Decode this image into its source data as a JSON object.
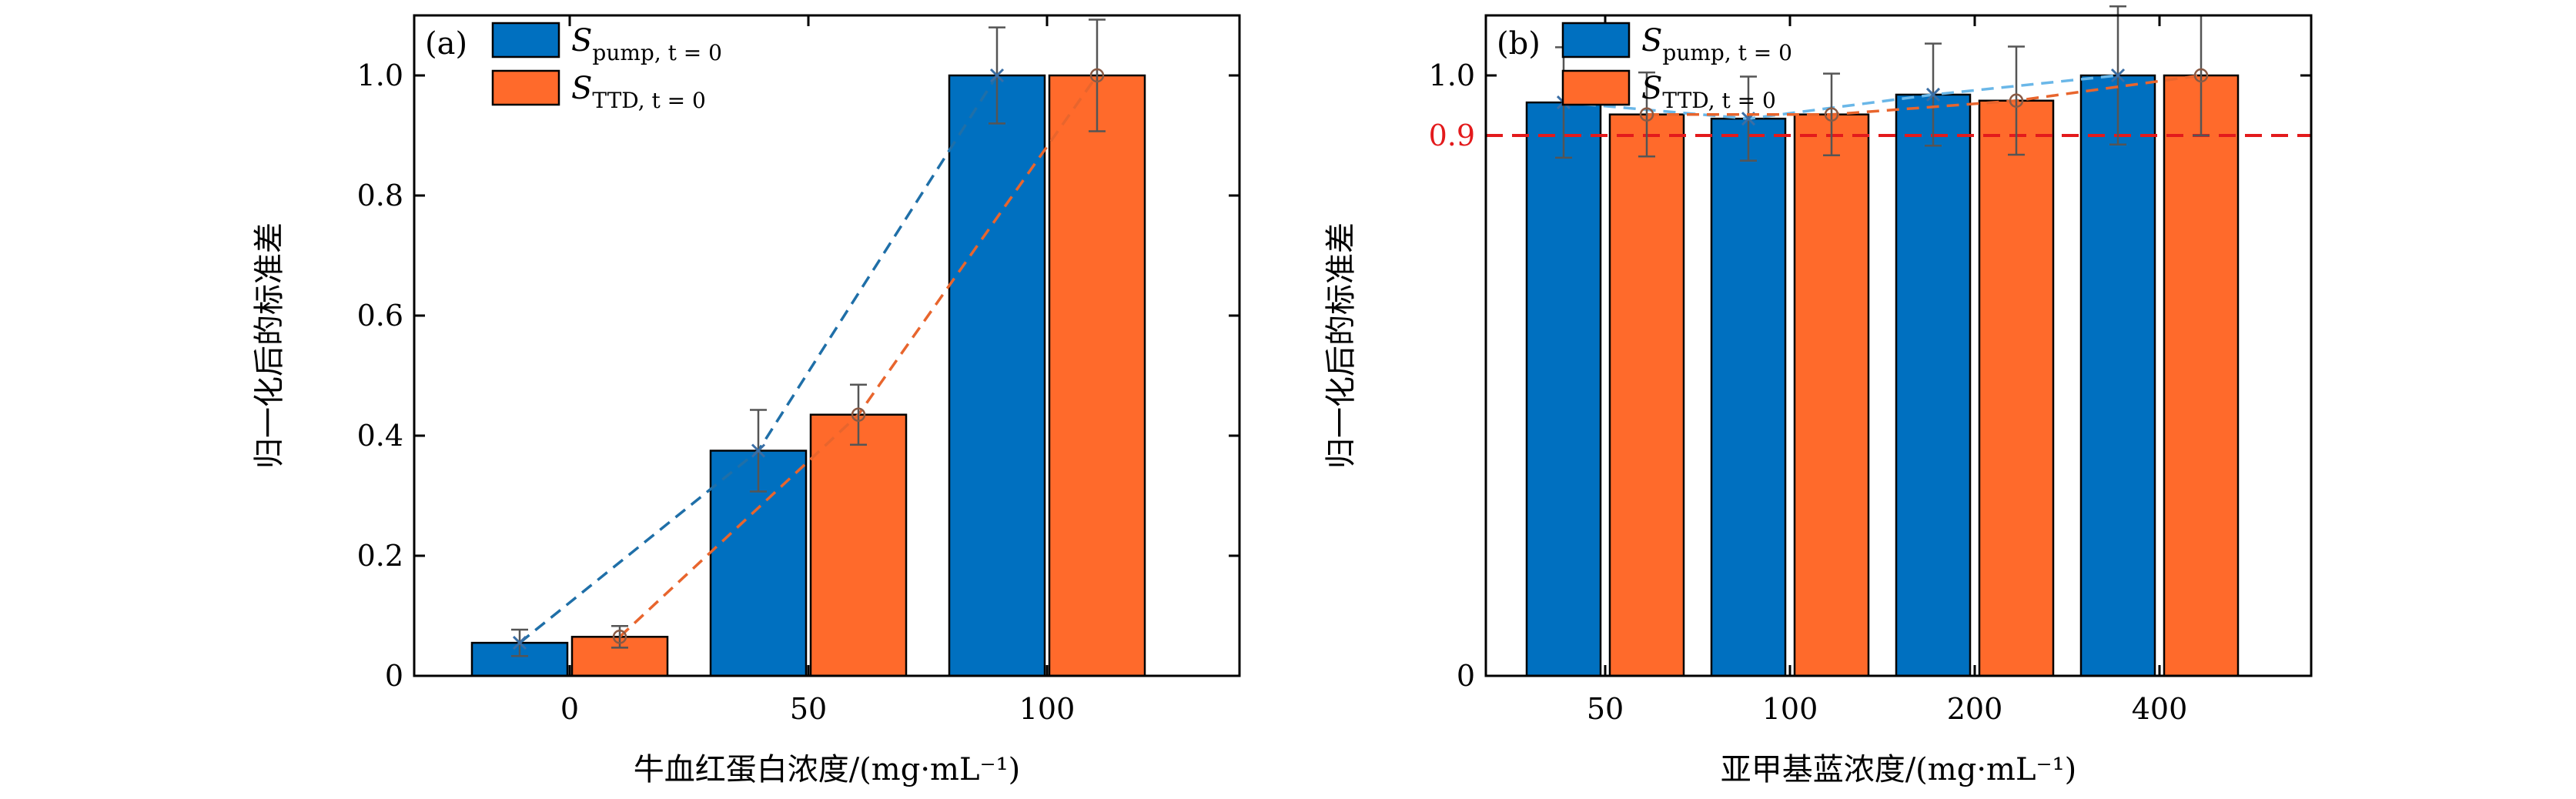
{
  "chart_data": [
    {
      "type": "bar",
      "panel": "(a)",
      "xlabel": "牛血红蛋白浓度/(mg·mL⁻¹)",
      "ylabel": "归一化后的标准差",
      "categories": [
        "0",
        "50",
        "100"
      ],
      "ylim": [
        0,
        1.1
      ],
      "yticks": [
        "0",
        "0.2",
        "0.4",
        "0.6",
        "0.8",
        "1.0"
      ],
      "legend_position": "top-left",
      "series": [
        {
          "name": "S_pump, t=0",
          "legend_main": "S",
          "legend_sub": "pump, t = 0",
          "color": "#0070c0",
          "values": [
            0.055,
            0.375,
            1.0
          ],
          "err": [
            0.022,
            0.068,
            0.08
          ],
          "marker": "x",
          "line_color": "#1f6fa8"
        },
        {
          "name": "S_TTD, t=0",
          "legend_main": "S",
          "legend_sub": "TTD, t = 0",
          "color": "#ff6a2b",
          "values": [
            0.065,
            0.435,
            1.0
          ],
          "err": [
            0.018,
            0.05,
            0.093
          ],
          "marker": "o",
          "line_color": "#e8652d"
        }
      ]
    },
    {
      "type": "bar",
      "panel": "(b)",
      "xlabel": "亚甲基蓝浓度/(mg·mL⁻¹)",
      "ylabel": "归一化后的标准差",
      "categories": [
        "50",
        "100",
        "200",
        "400"
      ],
      "ylim": [
        0,
        1.1
      ],
      "yticks": [
        "0",
        "1.0"
      ],
      "reference_line": {
        "value": 0.9,
        "label": "0.9",
        "color": "#e31a1c"
      },
      "legend_position": "top-left",
      "series": [
        {
          "name": "S_pump, t=0",
          "legend_main": "S",
          "legend_sub": "pump, t = 0",
          "color": "#0070c0",
          "values": [
            0.955,
            0.928,
            0.968,
            1.0
          ],
          "err": [
            0.092,
            0.07,
            0.085,
            0.115
          ],
          "marker": "x",
          "line_color": "#6ab7e8"
        },
        {
          "name": "S_TTD, t=0",
          "legend_main": "S",
          "legend_sub": "TTD, t = 0",
          "color": "#ff6a2b",
          "values": [
            0.935,
            0.935,
            0.958,
            1.0
          ],
          "err": [
            0.07,
            0.068,
            0.09,
            0.1
          ],
          "marker": "o",
          "line_color": "#e8652d"
        }
      ]
    }
  ]
}
